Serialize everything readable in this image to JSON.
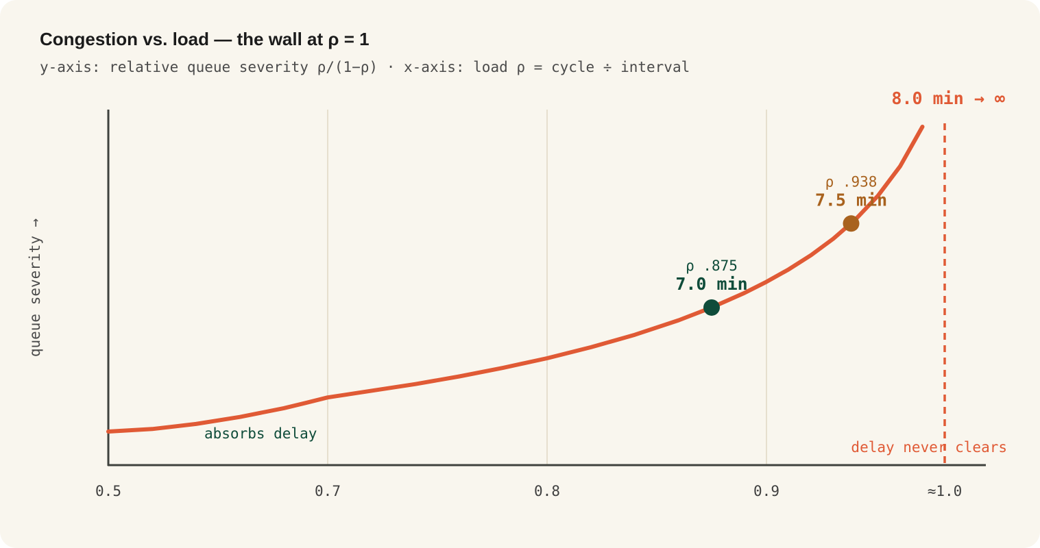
{
  "title": "Congestion vs. load — the wall at ρ = 1",
  "subtitle": "y-axis: relative queue severity ρ/(1−ρ) · x-axis: load ρ = cycle ÷ interval",
  "colors": {
    "background": "#f9f6ee",
    "curve": "#e05a35",
    "green": "#0f4c3a",
    "brown": "#a8621e",
    "axis": "#3f423d",
    "grid": "#e0d7c3"
  },
  "chart_data": {
    "type": "line",
    "ylabel": "queue severity →",
    "xlabel": "",
    "x_ticks": [
      {
        "value": 0.5,
        "label": "0.5"
      },
      {
        "value": 0.7,
        "label": "0.7"
      },
      {
        "value": 0.8,
        "label": "0.8"
      },
      {
        "value": 0.9,
        "label": "0.9"
      },
      {
        "value": 0.98,
        "label": "≈1.0"
      }
    ],
    "xlim": [
      0.5,
      1.0
    ],
    "ylim": [
      0,
      40
    ],
    "grid": "vertical",
    "series": [
      {
        "curve": "rho/(1-rho)",
        "x": [
          0.5,
          0.54,
          0.58,
          0.62,
          0.66,
          0.68,
          0.7,
          0.74,
          0.76,
          0.78,
          0.8,
          0.82,
          0.84,
          0.86,
          0.875,
          0.89,
          0.9,
          0.91,
          0.92,
          0.93,
          0.94,
          0.95,
          0.96,
          0.97
        ],
        "y": [
          1.0,
          1.17,
          1.38,
          1.63,
          1.94,
          2.13,
          2.33,
          2.85,
          3.17,
          3.55,
          4.0,
          4.56,
          5.25,
          6.14,
          7.0,
          8.09,
          9.0,
          10.11,
          11.5,
          13.29,
          15.67,
          19.0,
          24.0,
          32.33
        ]
      }
    ],
    "highlights": [
      {
        "x": 0.875,
        "y": 7.0,
        "rho_label": "ρ .875",
        "value_label": "7.0 min",
        "color": "#0f4c3a"
      },
      {
        "x": 0.938,
        "y": 15.13,
        "rho_label": "ρ .938",
        "value_label": "7.5 min",
        "color": "#a8621e"
      }
    ],
    "threshold": {
      "x": 0.98,
      "label": "8.0 min → ∞",
      "note": "delay never clears",
      "style": "dashed"
    },
    "annotations": [
      {
        "text": "absorbs delay"
      }
    ]
  }
}
